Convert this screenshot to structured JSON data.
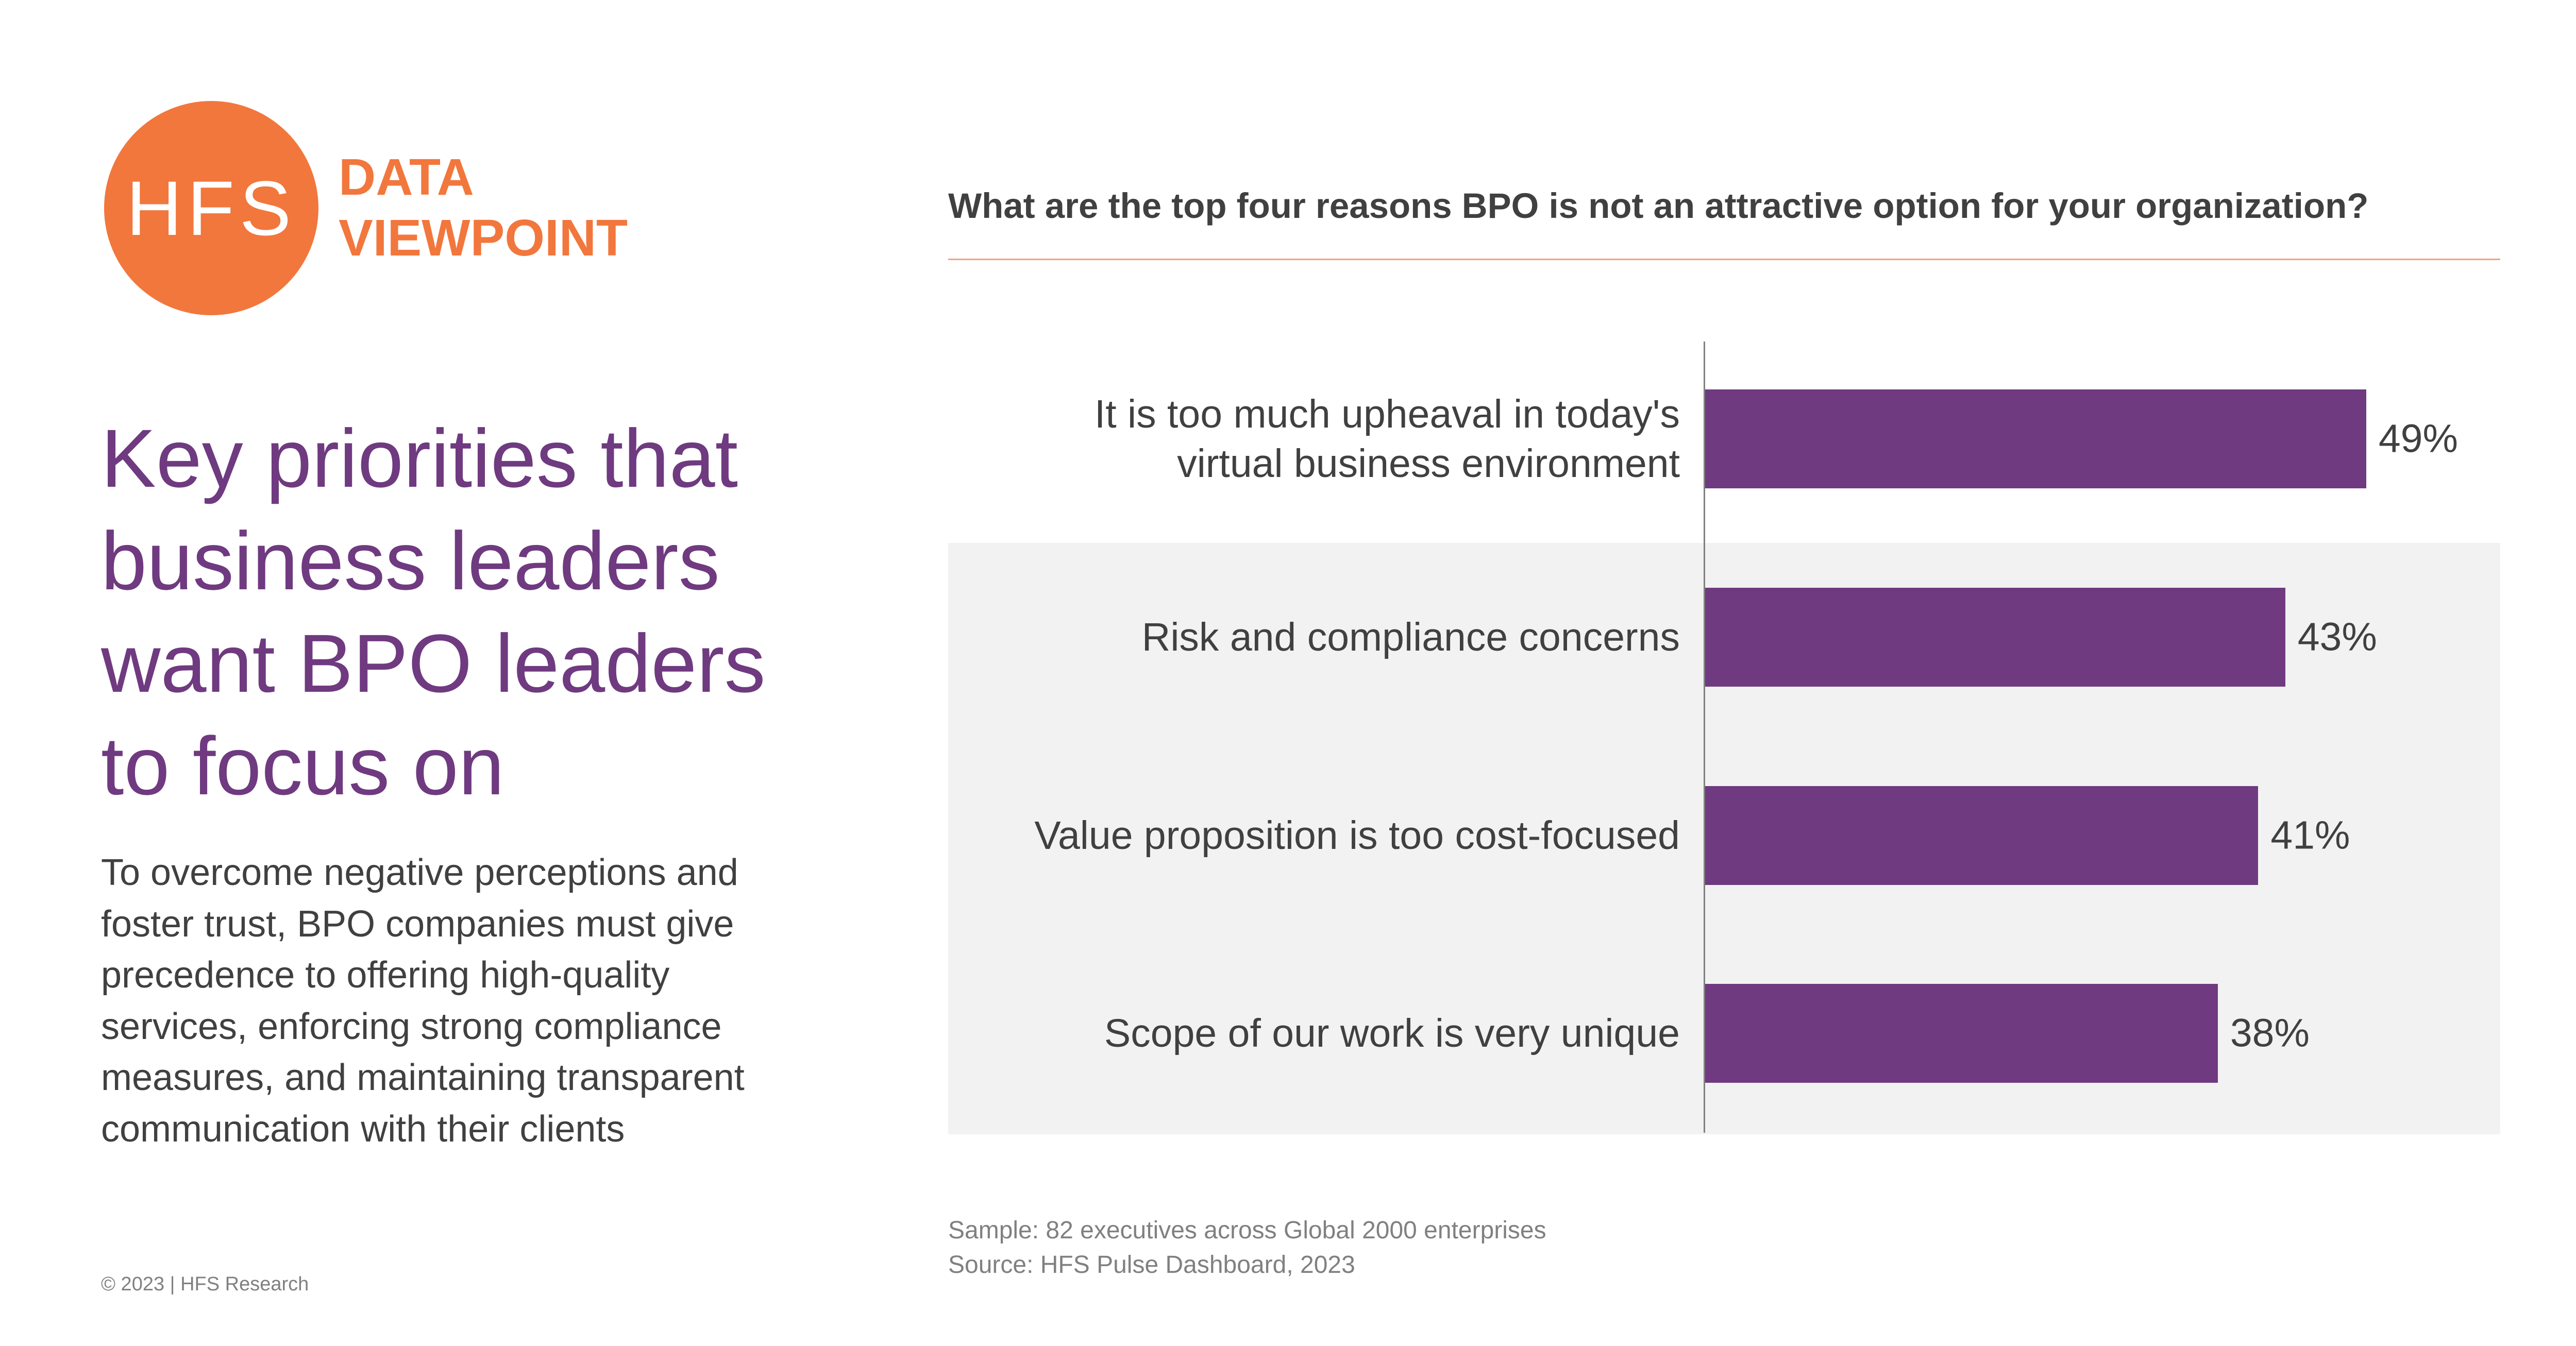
{
  "logo": {
    "mark": "HFS",
    "line1": "DATA",
    "line2": "VIEWPOINT",
    "color": "#f2773d"
  },
  "headline": "Key priorities that business leaders want BPO leaders to focus on",
  "body": "To overcome negative perceptions and foster trust, BPO companies must give precedence to offering high-quality services, enforcing strong compliance measures, and maintaining transparent communication with their clients",
  "copyright": "© 2023 | HFS Research",
  "notes": {
    "sample": "Sample: 82 executives across Global 2000 enterprises",
    "source": "Source: HFS Pulse Dashboard, 2023"
  },
  "chart_data": {
    "type": "bar",
    "orientation": "horizontal",
    "title": "What are the top four reasons BPO is not an attractive option for your organization?",
    "categories": [
      "It is too much upheaval in today's virtual business environment",
      "Risk and compliance concerns",
      "Value proposition is too cost-focused",
      "Scope of our work is very unique"
    ],
    "values": [
      49,
      43,
      41,
      38
    ],
    "value_labels": [
      "49%",
      "43%",
      "41%",
      "38%"
    ],
    "unit": "%",
    "bar_color": "#6f3a80",
    "grid": false,
    "legend": "none"
  }
}
